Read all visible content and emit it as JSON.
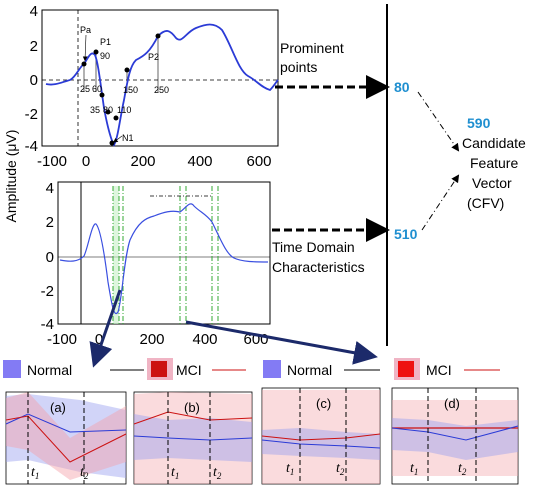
{
  "y_axis_label": "Amplitude (μV)",
  "top_plot": {
    "y_ticks": [
      "4",
      "2",
      "0",
      "-2",
      "-4"
    ],
    "x_ticks": [
      "-100",
      "0",
      "200",
      "400",
      "600"
    ],
    "point_labels": [
      "Pa",
      "P1",
      "90",
      "P2",
      "25",
      "60",
      "35",
      "80",
      "110",
      "150",
      "250",
      "N1"
    ],
    "colors": {
      "signal": "#2b3bd6",
      "markers": "#000000"
    }
  },
  "bottom_plot": {
    "y_ticks": [
      "4",
      "2",
      "0",
      "-2",
      "-4"
    ],
    "x_ticks": [
      "-100",
      "0",
      "200",
      "400",
      "600"
    ],
    "colors": {
      "signal": "#3a4fe0",
      "windows": "#33aa33"
    }
  },
  "annotations": {
    "prominent_points": [
      "Prominent",
      "points"
    ],
    "prominent_count": "80",
    "time_domain": [
      "Time Domain",
      "Characteristics"
    ],
    "time_domain_count": "510",
    "cfv_count": "590",
    "cfv_label": [
      "Candidate",
      "Feature",
      "Vector",
      "(CFV)"
    ]
  },
  "legend": {
    "left": {
      "normal": "Normal",
      "mci": "MCI"
    },
    "right": {
      "normal": "Normal",
      "mci": "MCI"
    },
    "colors": {
      "normal_patch": "#5a4ff0",
      "mci_patch": "#cc1111",
      "mci_line": "#cc1111",
      "normal_line": "#000000"
    }
  },
  "subplots": [
    {
      "label": "(a)",
      "t1": "t",
      "t1_sub": "1",
      "t2": "t",
      "t2_sub": "2"
    },
    {
      "label": "(b)",
      "t1": "t",
      "t1_sub": "1",
      "t2": "t",
      "t2_sub": "2"
    },
    {
      "label": "(c)",
      "t1": "t",
      "t1_sub": "1",
      "t2": "t",
      "t2_sub": "2"
    },
    {
      "label": "(d)",
      "t1": "t",
      "t1_sub": "1",
      "t2": "t",
      "t2_sub": "2"
    }
  ]
}
